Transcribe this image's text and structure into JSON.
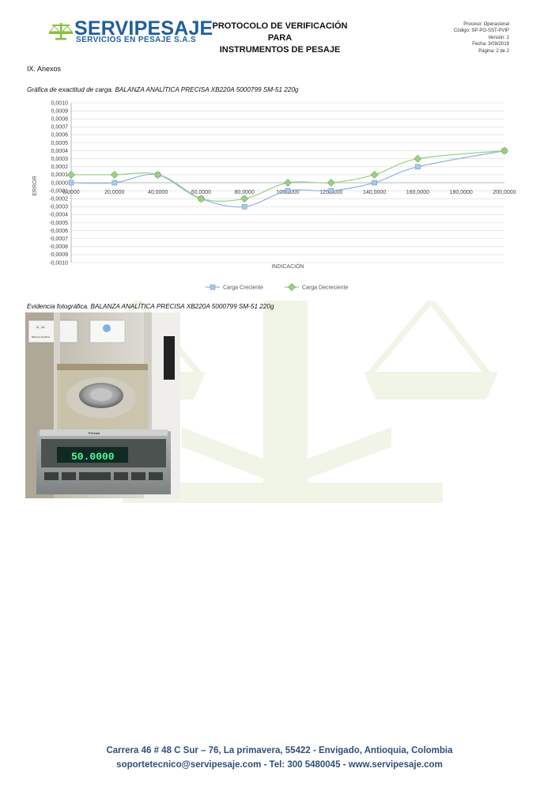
{
  "header": {
    "logo_name": "SERVIPESAJE",
    "logo_sub": "SERVICIOS EN PESAJE S.A.S",
    "title_line1": "PROTOCOLO DE VERIFICACIÓN PARA",
    "title_line2": "INSTRUMENTOS DE PESAJE",
    "meta": {
      "proceso": "Proceso: Operacional",
      "codigo": "Código: SP-PO-SST-PVIP",
      "version": "Versión: 2",
      "fecha": "Fecha: 3/09/2019",
      "pagina": "Página: 2 de 2"
    }
  },
  "section_title": "IX. Anexos",
  "chart_caption": "Gráfica de exactitud de carga. BALANZA ANALÍTICA PRECISA XB220A 5000799 SM-51 220g",
  "photo_caption": "Evidencia fotográfica. BALANZA ANALÍTICA PRECISA XB220A 5000799 SM-51 220g",
  "photo": {
    "display_value": "50.0000",
    "brand": "Precisa",
    "label_top": "SI - 06",
    "label_bottom": "Balanza Analítica"
  },
  "chart_data": {
    "type": "line",
    "xlabel": "INDICACIÓN",
    "ylabel": "ERROR",
    "x": [
      0,
      20,
      40,
      60,
      80,
      100,
      120,
      140,
      160,
      200
    ],
    "x_ticks": [
      0,
      20,
      40,
      60,
      80,
      100,
      120,
      140,
      160,
      180,
      200
    ],
    "x_tick_labels": [
      "0,0000",
      "20,0000",
      "40,0000",
      "60,0000",
      "80,0000",
      "100,0000",
      "120,0000",
      "140,0000",
      "160,0000",
      "180,0000",
      "200,0000"
    ],
    "xlim": [
      0,
      200
    ],
    "ylim": [
      -0.001,
      0.001
    ],
    "y_step": 0.0001,
    "grid": true,
    "legend_position": "bottom",
    "series": [
      {
        "name": "Carga Creciente",
        "color": "#8db4e2",
        "values": [
          0,
          0,
          0.0001,
          -0.0002,
          -0.0003,
          -0.0001,
          -0.0001,
          0,
          0.0002,
          0.0004
        ]
      },
      {
        "name": "Carga Decreciente",
        "color": "#9bd083",
        "values": [
          0.0001,
          0.0001,
          0.0001,
          -0.0002,
          -0.0002,
          0,
          0,
          0.0001,
          0.0003,
          0.0004
        ]
      }
    ]
  },
  "footer": {
    "address": "Carrera 46 # 48 C Sur – 76, La primavera, 55422 - Envigado, Antioquia, Colombia",
    "contact": "soportetecnico@servipesaje.com - Tel: 300 5480045 - www.servipesaje.com"
  },
  "colors": {
    "brand_blue": "#1f5f9e",
    "footer_blue": "#2e4f7a",
    "watermark_green": "#eef4e4"
  }
}
